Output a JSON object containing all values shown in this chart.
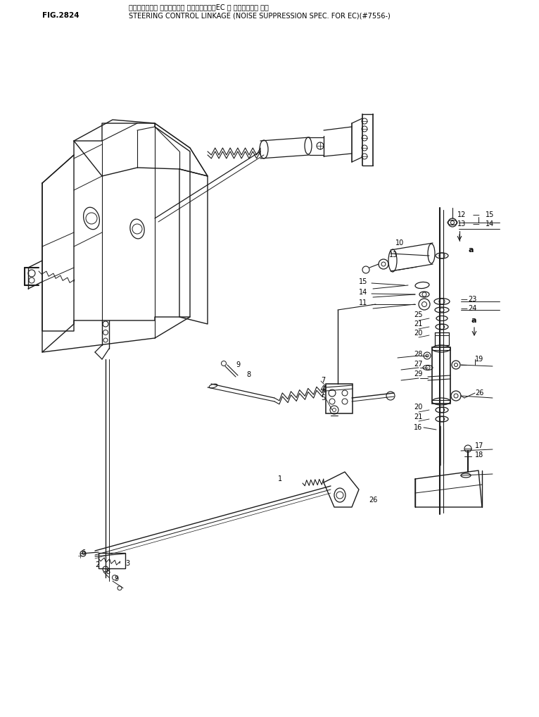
{
  "fig_number": "FIG.2824",
  "title_japanese": "ステアリング・ コントロール リンケージ　（EC 付 ディッチング 付）",
  "title_english": "STEERING CONTROL LINKAGE (NOISE SUPPRESSION SPEC. FOR EC)(#7556-)",
  "bg_color": "#ffffff",
  "line_color": "#1a1a1a",
  "text_color": "#000000",
  "fig_width": 7.66,
  "fig_height": 10.18
}
